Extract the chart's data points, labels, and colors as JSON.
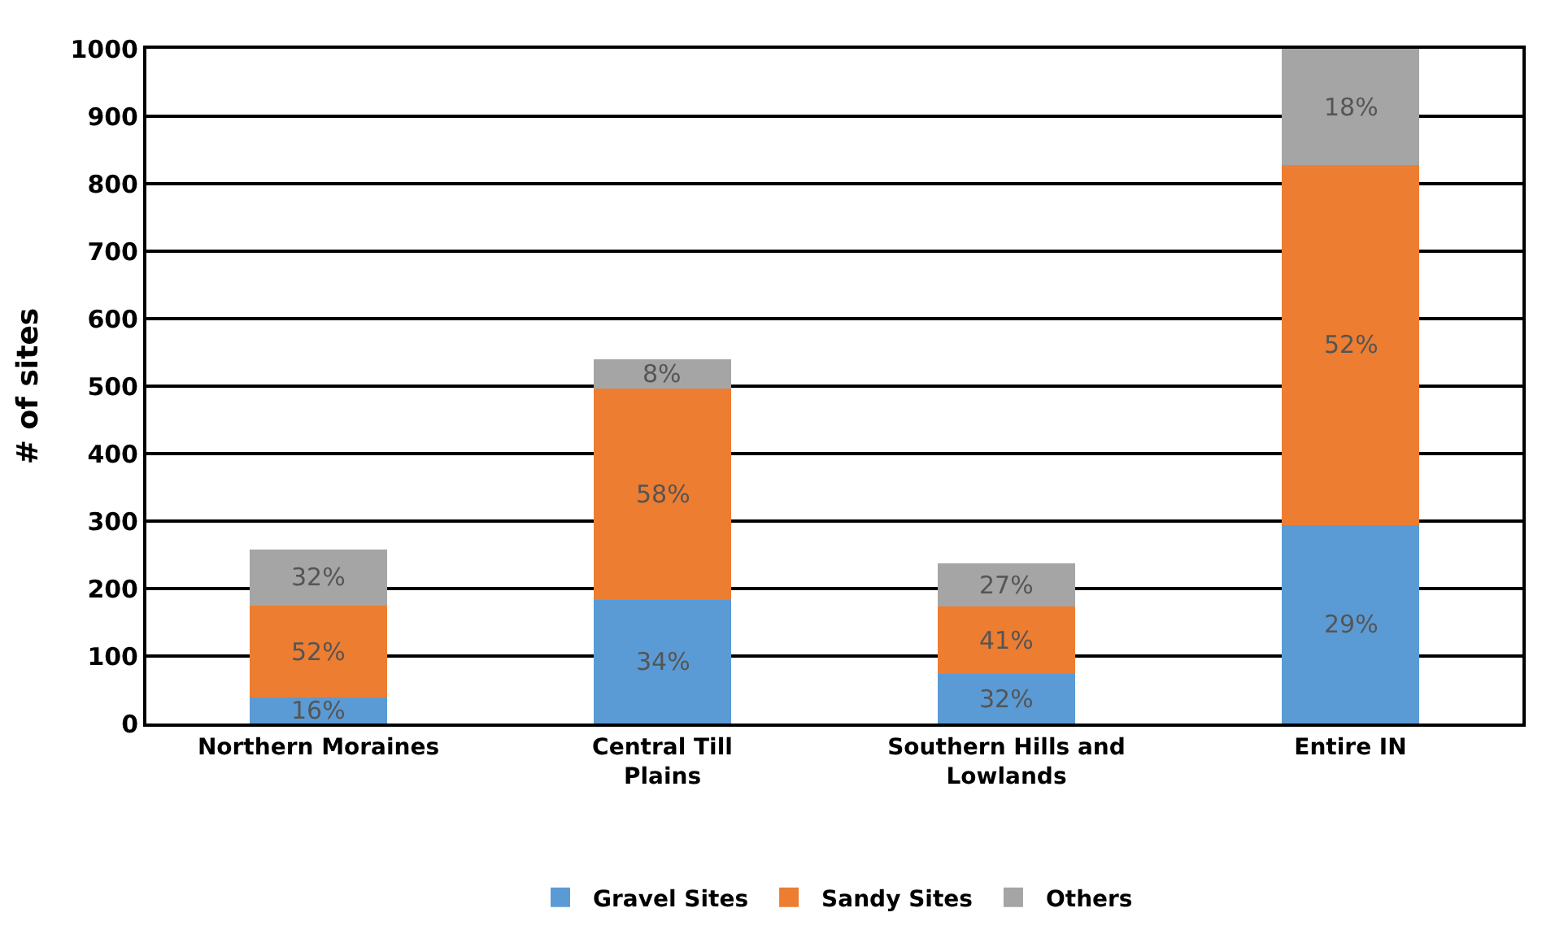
{
  "chart_data": {
    "type": "bar",
    "stacked": true,
    "ylabel": "# of sites",
    "categories": [
      "Northern Moraines",
      "Central Till Plains",
      "Southern Hills and Lowlands",
      "Entire IN"
    ],
    "series": [
      {
        "name": "Gravel Sites",
        "color": "#5b9bd5",
        "values": [
          38,
          183,
          74,
          294
        ]
      },
      {
        "name": "Sandy Sites",
        "color": "#ed7d31",
        "values": [
          137,
          314,
          100,
          534
        ]
      },
      {
        "name": "Others",
        "color": "#a5a5a5",
        "values": [
          83,
          43,
          63,
          172
        ]
      }
    ],
    "annotations": [
      "16%",
      "52%",
      "32%",
      "34%",
      "58%",
      "8%",
      "32%",
      "41%",
      "27%",
      "29%",
      "52%",
      "18%"
    ],
    "ylim": [
      0,
      1000
    ],
    "yticks": [
      0,
      100,
      200,
      300,
      400,
      500,
      600,
      700,
      800,
      900,
      1000
    ],
    "grid": "y",
    "legend": "bottom"
  }
}
